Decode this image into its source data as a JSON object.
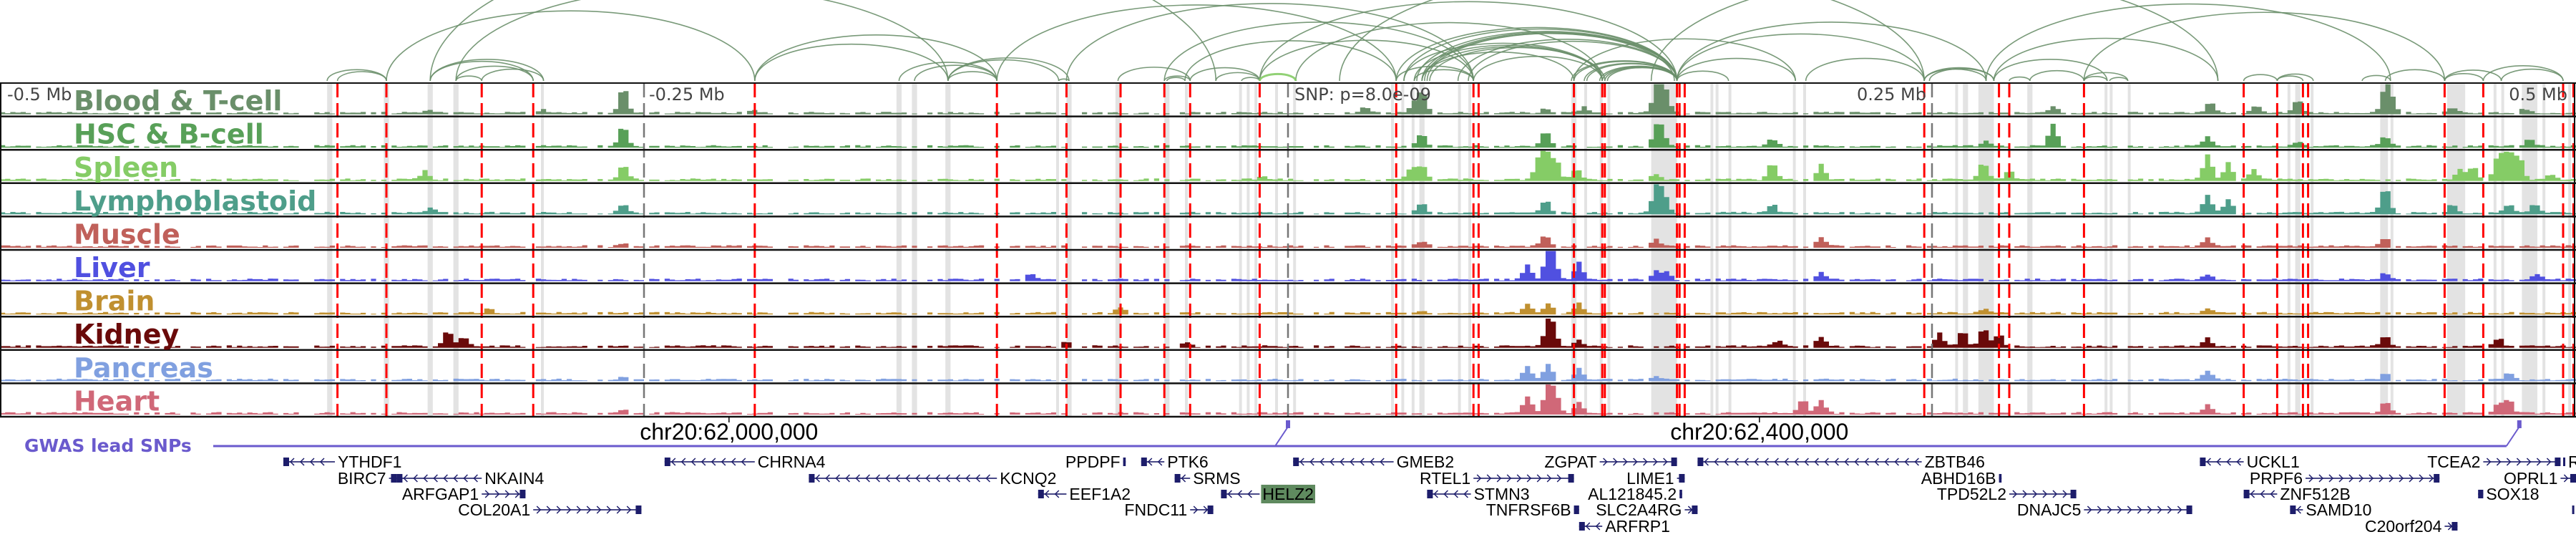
{
  "ruler": {
    "left": "-0.5 Mb",
    "mid_left": "-0.25 Mb",
    "snp": "SNP: p=8.0e-09",
    "mid_right": "0.25 Mb",
    "right": "0.5 Mb",
    "ticks_kb": [
      -250,
      0,
      250
    ]
  },
  "axis": {
    "kb_min": -500,
    "kb_max": 500
  },
  "tracks": [
    {
      "name": "Blood & T-cell",
      "color": "#6a8f6a",
      "peaks": [
        [
          -258,
          0.9
        ],
        [
          -333,
          0.1
        ],
        [
          -289,
          0.1
        ],
        [
          -207,
          0.08
        ],
        [
          52,
          0.7
        ],
        [
          49,
          0.3
        ],
        [
          30,
          0.2
        ],
        [
          100,
          0.15
        ],
        [
          115,
          0.2
        ],
        [
          143,
          0.75
        ],
        [
          147,
          0.5
        ],
        [
          145,
          0.6
        ],
        [
          297,
          0.25
        ],
        [
          358,
          0.35
        ],
        [
          376,
          0.25
        ],
        [
          392,
          0.45
        ],
        [
          426,
          0.8
        ],
        [
          428,
          0.5
        ],
        [
          452,
          0.2
        ],
        [
          480,
          0.15
        ]
      ]
    },
    {
      "name": "HSC & B-cell",
      "color": "#58a058",
      "peaks": [
        [
          -258,
          0.7
        ],
        [
          52,
          0.45
        ],
        [
          100,
          0.5
        ],
        [
          143,
          0.5
        ],
        [
          145,
          0.55
        ],
        [
          188,
          0.25
        ],
        [
          271,
          0.2
        ],
        [
          297,
          0.75
        ],
        [
          357,
          0.35
        ],
        [
          392,
          0.15
        ],
        [
          426,
          0.35
        ],
        [
          482,
          0.25
        ]
      ]
    },
    {
      "name": "Spleen",
      "color": "#85cc66",
      "peaks": [
        [
          -258,
          0.5
        ],
        [
          -335,
          0.3
        ],
        [
          -10,
          0.1
        ],
        [
          52,
          0.5
        ],
        [
          48,
          0.4
        ],
        [
          100,
          1.0
        ],
        [
          97,
          0.6
        ],
        [
          104,
          0.7
        ],
        [
          112,
          0.35
        ],
        [
          143,
          0.2
        ],
        [
          188,
          0.6
        ],
        [
          207,
          0.55
        ],
        [
          270,
          0.6
        ],
        [
          280,
          0.3
        ],
        [
          357,
          0.9
        ],
        [
          365,
          0.6
        ],
        [
          375,
          0.35
        ],
        [
          455,
          0.35
        ],
        [
          460,
          0.45
        ],
        [
          470,
          0.9
        ],
        [
          474,
          1.0
        ],
        [
          478,
          0.8
        ],
        [
          490,
          0.2
        ]
      ]
    },
    {
      "name": "Lymphoblastoid",
      "color": "#4e9e8a",
      "peaks": [
        [
          -258,
          0.3
        ],
        [
          -333,
          0.2
        ],
        [
          52,
          0.35
        ],
        [
          100,
          0.45
        ],
        [
          143,
          0.9
        ],
        [
          146,
          0.6
        ],
        [
          188,
          0.3
        ],
        [
          357,
          0.6
        ],
        [
          365,
          0.5
        ],
        [
          426,
          0.9
        ],
        [
          452,
          0.3
        ],
        [
          474,
          0.3
        ],
        [
          484,
          0.3
        ]
      ]
    },
    {
      "name": "Muscle",
      "color": "#c0605a",
      "peaks": [
        [
          100,
          0.4
        ],
        [
          52,
          0.2
        ],
        [
          143,
          0.25
        ],
        [
          207,
          0.3
        ],
        [
          357,
          0.3
        ],
        [
          426,
          0.3
        ],
        [
          -258,
          0.1
        ]
      ]
    },
    {
      "name": "Liver",
      "color": "#5050e0",
      "peaks": [
        [
          93,
          0.5
        ],
        [
          101,
          0.95
        ],
        [
          103,
          0.7
        ],
        [
          113,
          0.6
        ],
        [
          143,
          0.3
        ],
        [
          147,
          0.25
        ],
        [
          207,
          0.25
        ],
        [
          -100,
          0.2
        ],
        [
          357,
          0.2
        ],
        [
          426,
          0.25
        ],
        [
          485,
          0.2
        ]
      ]
    },
    {
      "name": "Brain",
      "color": "#c09030",
      "peaks": [
        [
          93,
          0.3
        ],
        [
          101,
          0.35
        ],
        [
          113,
          0.35
        ],
        [
          -65,
          0.2
        ],
        [
          -310,
          0.15
        ],
        [
          52,
          0.1
        ],
        [
          357,
          0.15
        ],
        [
          270,
          0.15
        ]
      ]
    },
    {
      "name": "Kidney",
      "color": "#6a0a0a",
      "peaks": [
        [
          -326,
          0.55
        ],
        [
          -320,
          0.35
        ],
        [
          101,
          0.75
        ],
        [
          103,
          0.5
        ],
        [
          113,
          0.2
        ],
        [
          -40,
          0.15
        ],
        [
          -86,
          0.2
        ],
        [
          190,
          0.2
        ],
        [
          207,
          0.35
        ],
        [
          253,
          0.45
        ],
        [
          262,
          0.55
        ],
        [
          270,
          0.65
        ],
        [
          276,
          0.45
        ],
        [
          357,
          0.3
        ],
        [
          426,
          0.35
        ],
        [
          470,
          0.3
        ]
      ]
    },
    {
      "name": "Pancreas",
      "color": "#80a0e0",
      "peaks": [
        [
          93,
          0.45
        ],
        [
          101,
          0.55
        ],
        [
          113,
          0.4
        ],
        [
          143,
          0.15
        ],
        [
          -258,
          0.1
        ],
        [
          357,
          0.3
        ],
        [
          426,
          0.2
        ],
        [
          474,
          0.25
        ]
      ]
    },
    {
      "name": "Heart",
      "color": "#d06878",
      "peaks": [
        [
          93,
          0.6
        ],
        [
          101,
          0.95
        ],
        [
          104,
          0.6
        ],
        [
          113,
          0.4
        ],
        [
          200,
          0.5
        ],
        [
          207,
          0.45
        ],
        [
          -258,
          0.15
        ],
        [
          357,
          0.3
        ],
        [
          426,
          0.4
        ],
        [
          470,
          0.35
        ],
        [
          474,
          0.45
        ]
      ]
    }
  ],
  "highlights": {
    "red_color": "#ff0000",
    "gray_color": "#e3e3e3",
    "red_lines_kb": [
      -369,
      -350,
      -313,
      -293,
      -207,
      -113,
      -86,
      -65,
      -48,
      -38,
      -11,
      42,
      72,
      74,
      111,
      122,
      123,
      151,
      152,
      154,
      247,
      276,
      280,
      309,
      371,
      384,
      394,
      396,
      449,
      464,
      495,
      499
    ],
    "gray_bands_kb": [
      [
        -373,
        -371
      ],
      [
        -351,
        -349
      ],
      [
        -334,
        -332
      ],
      [
        -324,
        -322
      ],
      [
        -290,
        -289
      ],
      [
        -152,
        -150
      ],
      [
        -146,
        -144
      ],
      [
        -133,
        -131
      ],
      [
        -90,
        -89
      ],
      [
        -86,
        -84
      ],
      [
        -67,
        -65
      ],
      [
        -48,
        -46
      ],
      [
        -40,
        -39
      ],
      [
        -19,
        -18
      ],
      [
        -16,
        -15
      ],
      [
        -13,
        -12
      ],
      [
        -5,
        -4
      ],
      [
        2,
        3
      ],
      [
        40,
        41
      ],
      [
        44,
        45
      ],
      [
        48,
        49
      ],
      [
        51,
        53
      ],
      [
        66,
        67
      ],
      [
        70,
        71
      ],
      [
        110,
        112
      ],
      [
        115,
        116
      ],
      [
        121,
        122
      ],
      [
        124,
        125
      ],
      [
        141,
        151
      ],
      [
        164,
        165
      ],
      [
        166,
        167
      ],
      [
        171,
        172
      ],
      [
        196,
        197
      ],
      [
        200,
        201
      ],
      [
        259,
        260
      ],
      [
        262,
        264
      ],
      [
        268,
        274
      ],
      [
        287,
        289
      ],
      [
        317,
        318
      ],
      [
        319,
        320
      ],
      [
        326,
        327
      ],
      [
        388,
        389
      ],
      [
        391,
        393
      ],
      [
        397,
        398
      ],
      [
        424,
        427
      ],
      [
        428,
        429
      ],
      [
        450,
        455
      ],
      [
        455,
        457
      ],
      [
        468,
        469
      ],
      [
        471,
        472
      ],
      [
        479,
        485
      ],
      [
        487,
        488
      ],
      [
        497,
        498
      ]
    ]
  },
  "arcs": {
    "color": "#6a8f6a",
    "alt_color": "#85cc66",
    "links_kb": [
      [
        -373,
        -350
      ],
      [
        -369,
        -350
      ],
      [
        -333,
        -293
      ],
      [
        -333,
        -289
      ],
      [
        -323,
        -293
      ],
      [
        -323,
        -313
      ],
      [
        -313,
        -289
      ],
      [
        -350,
        -207
      ],
      [
        -333,
        -28
      ],
      [
        -323,
        -132
      ],
      [
        -207,
        -113
      ],
      [
        -207,
        -132
      ],
      [
        -151,
        -113
      ],
      [
        -145,
        -113
      ],
      [
        -132,
        -113
      ],
      [
        -132,
        -89
      ],
      [
        -132,
        -85
      ],
      [
        -89,
        -85
      ],
      [
        -66,
        -38
      ],
      [
        -48,
        -38
      ],
      [
        -47,
        -40
      ],
      [
        -38,
        -11
      ],
      [
        -113,
        42
      ],
      [
        -28,
        -11
      ],
      [
        -18,
        -11
      ],
      [
        42,
        72
      ],
      [
        49,
        72
      ],
      [
        52,
        111
      ],
      [
        52,
        151
      ],
      [
        42,
        151
      ],
      [
        52,
        122
      ],
      [
        49,
        122
      ],
      [
        45,
        122
      ],
      [
        72,
        122
      ],
      [
        111,
        151
      ],
      [
        122,
        151
      ],
      [
        116,
        151
      ],
      [
        123,
        151
      ],
      [
        151,
        197
      ],
      [
        151,
        171
      ],
      [
        151,
        247
      ],
      [
        151,
        271
      ],
      [
        111,
        197
      ],
      [
        3,
        122
      ],
      [
        -11,
        151
      ],
      [
        -86,
        72
      ],
      [
        201,
        247
      ],
      [
        247,
        274
      ],
      [
        247,
        271
      ],
      [
        249,
        274
      ],
      [
        274,
        318
      ],
      [
        274,
        361
      ],
      [
        280,
        288
      ],
      [
        288,
        309
      ],
      [
        309,
        318
      ],
      [
        309,
        326
      ],
      [
        319,
        326
      ],
      [
        20,
        247
      ],
      [
        141,
        361
      ],
      [
        371,
        384
      ],
      [
        384,
        398
      ],
      [
        384,
        394
      ],
      [
        417,
        428
      ],
      [
        426,
        449
      ],
      [
        449,
        464
      ],
      [
        449,
        471
      ],
      [
        464,
        495
      ],
      [
        471,
        495
      ],
      [
        271,
        428
      ],
      [
        309,
        449
      ],
      [
        45,
        151
      ],
      [
        54,
        151
      ],
      [
        66,
        151
      ],
      [
        70,
        151
      ],
      [
        110,
        151
      ],
      [
        115,
        151
      ],
      [
        121,
        151
      ],
      [
        124,
        151
      ],
      [
        -48,
        72
      ],
      [
        -40,
        42
      ],
      [
        -11,
        72
      ],
      [
        53,
        150
      ],
      [
        50,
        151
      ],
      [
        55,
        123
      ]
    ],
    "alt_links_kb": [
      [
        -11,
        3
      ]
    ]
  },
  "gwas": {
    "label": "GWAS lead SNPs",
    "color": "#6a5acd",
    "snps_kb": [
      0,
      478
    ]
  },
  "coords": [
    {
      "label": "chr20:62,000,000",
      "kb": -217
    },
    {
      "label": "chr20:62,400,000",
      "kb": 183
    }
  ],
  "gene_color": "#1d1d6b",
  "highlight_gene_bg": "#5f8a5f",
  "genes": [
    {
      "name": "YTHDF1",
      "start": -390,
      "end": -370,
      "strand": "-",
      "row": 0,
      "label": "right"
    },
    {
      "name": "CHRNA4",
      "start": -242,
      "end": -207,
      "strand": "-",
      "row": 0,
      "label": "right"
    },
    {
      "name": "PPDPF",
      "start": -64,
      "end": -63,
      "strand": "+",
      "row": 0,
      "label": "left"
    },
    {
      "name": "PTK6",
      "start": -57,
      "end": -48,
      "strand": "-",
      "row": 0,
      "label": "right"
    },
    {
      "name": "GMEB2",
      "start": 2,
      "end": 41,
      "strand": "-",
      "row": 0,
      "label": "right"
    },
    {
      "name": "ZGPAT",
      "start": 121,
      "end": 151,
      "strand": "+",
      "row": 0,
      "label": "left"
    },
    {
      "name": "ZBTB46",
      "start": 159,
      "end": 246,
      "strand": "-",
      "row": 0,
      "label": "right"
    },
    {
      "name": "UCKL1",
      "start": 354,
      "end": 371,
      "strand": "-",
      "row": 0,
      "label": "right"
    },
    {
      "name": "TCEA2",
      "start": 464,
      "end": 494,
      "strand": "+",
      "row": 0,
      "label": "left"
    },
    {
      "name": "R",
      "start": 495,
      "end": 495.5,
      "strand": "+",
      "row": 0,
      "label": "right"
    },
    {
      "name": "BIRC7",
      "start": -349,
      "end": -346,
      "strand": "+",
      "row": 1,
      "label": "left"
    },
    {
      "name": "NKAIN4",
      "start": -346,
      "end": -313,
      "strand": "-",
      "row": 1,
      "label": "right"
    },
    {
      "name": "KCNQ2",
      "start": -186,
      "end": -113,
      "strand": "-",
      "row": 1,
      "label": "right"
    },
    {
      "name": "SRMS",
      "start": -44,
      "end": -38,
      "strand": "-",
      "row": 1,
      "label": "right"
    },
    {
      "name": "RTEL1",
      "start": 72,
      "end": 111,
      "strand": "+",
      "row": 1,
      "label": "left"
    },
    {
      "name": "LIME1",
      "start": 151,
      "end": 154,
      "strand": "+",
      "row": 1,
      "label": "left"
    },
    {
      "name": "ABHD16B",
      "start": 276,
      "end": 277,
      "strand": "+",
      "row": 1,
      "label": "left"
    },
    {
      "name": "PRPF6",
      "start": 395,
      "end": 447,
      "strand": "+",
      "row": 1,
      "label": "left"
    },
    {
      "name": "OPRL1",
      "start": 494,
      "end": 500,
      "strand": "+",
      "row": 1,
      "label": "left"
    },
    {
      "name": "ARFGAP1",
      "start": -313,
      "end": -296,
      "strand": "+",
      "row": 2,
      "label": "left"
    },
    {
      "name": "EEF1A2",
      "start": -97,
      "end": -86,
      "strand": "-",
      "row": 2,
      "label": "right"
    },
    {
      "name": "HELZ2",
      "start": -26,
      "end": -11,
      "strand": "-",
      "row": 2,
      "label": "right",
      "highlight": true
    },
    {
      "name": "STMN3",
      "start": 54,
      "end": 71,
      "strand": "-",
      "row": 2,
      "label": "right"
    },
    {
      "name": "AL121845.2",
      "start": 152,
      "end": 153,
      "strand": "+",
      "row": 2,
      "label": "left"
    },
    {
      "name": "TPD52L2",
      "start": 280,
      "end": 306,
      "strand": "+",
      "row": 2,
      "label": "left"
    },
    {
      "name": "ZNF512B",
      "start": 371,
      "end": 384,
      "strand": "-",
      "row": 2,
      "label": "right"
    },
    {
      "name": "SOX18",
      "start": 462,
      "end": 464,
      "strand": "-",
      "row": 2,
      "label": "right"
    },
    {
      "name": "COL20A1",
      "start": -293,
      "end": -251,
      "strand": "+",
      "row": 3,
      "label": "left"
    },
    {
      "name": "FNDC11",
      "start": -38,
      "end": -29,
      "strand": "+",
      "row": 3,
      "label": "left"
    },
    {
      "name": "TNFRSF6B",
      "start": 111,
      "end": 113,
      "strand": "+",
      "row": 3,
      "label": "left"
    },
    {
      "name": "SLC2A4RG",
      "start": 154,
      "end": 159,
      "strand": "+",
      "row": 3,
      "label": "left"
    },
    {
      "name": "DNAJC5",
      "start": 309,
      "end": 351,
      "strand": "+",
      "row": 3,
      "label": "left"
    },
    {
      "name": "SAMD10",
      "start": 389,
      "end": 394,
      "strand": "-",
      "row": 3,
      "label": "right"
    },
    {
      "name": "ARFRP1",
      "start": 113,
      "end": 122,
      "strand": "-",
      "row": 4,
      "label": "right"
    },
    {
      "name": "C20orf204",
      "start": 449,
      "end": 454,
      "strand": "+",
      "row": 4,
      "label": "left"
    }
  ]
}
